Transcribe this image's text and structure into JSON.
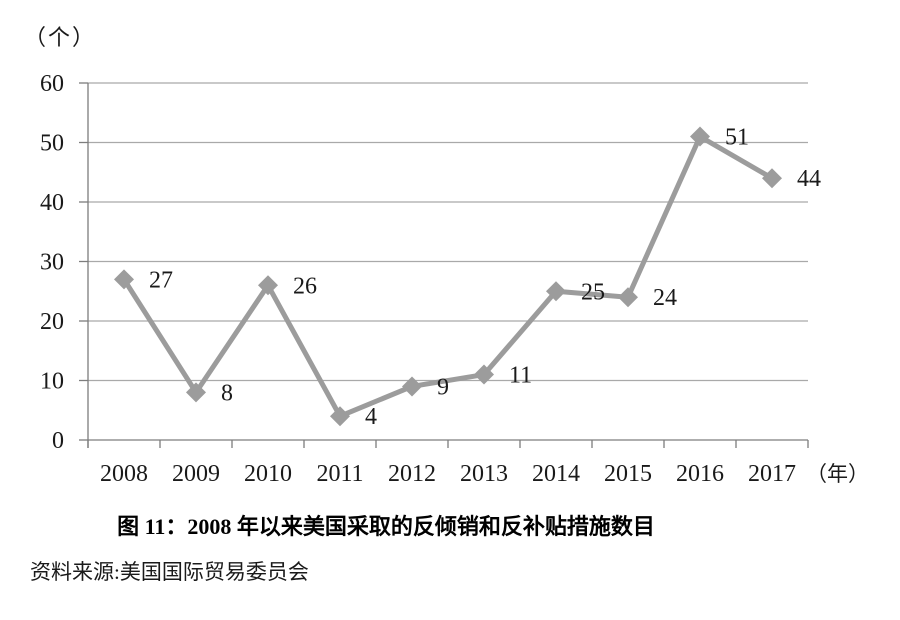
{
  "figure": {
    "title": "图 11：2008 年以来美国采取的反倾销和反补贴措施数目",
    "source": "资料来源:美国国际贸易委员会",
    "y_axis_unit": "（个）",
    "x_axis_unit": "（年）"
  },
  "chart_data": {
    "type": "line",
    "categories": [
      "2008",
      "2009",
      "2010",
      "2011",
      "2012",
      "2013",
      "2014",
      "2015",
      "2016",
      "2017"
    ],
    "values": [
      27,
      8,
      26,
      4,
      9,
      11,
      25,
      24,
      51,
      44
    ],
    "title": "图 11：2008 年以来美国采取的反倾销和反补贴措施数目",
    "xlabel": "（年）",
    "ylabel": "（个）",
    "ylim": [
      0,
      60
    ],
    "yticks": [
      0,
      10,
      20,
      30,
      40,
      50,
      60
    ],
    "grid": true,
    "legend": "none",
    "marker": "diamond",
    "data_labels": true,
    "colors": {
      "line": "#9c9c9c",
      "marker": "#9c9c9c",
      "gridline": "#a9a9a9",
      "axis": "#7d7d7d",
      "text": "#1a1a1a"
    }
  }
}
